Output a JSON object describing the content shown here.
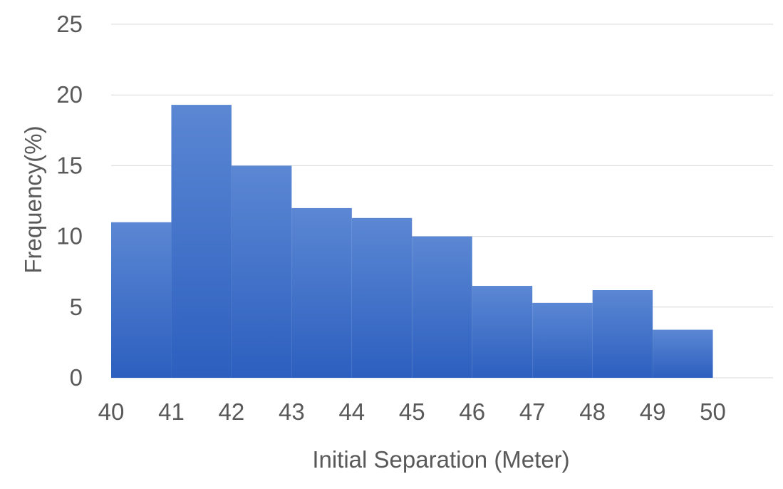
{
  "chart_data": {
    "type": "bar",
    "title": "",
    "xlabel": "Initial Separation (Meter)",
    "ylabel": "Frequency(%)",
    "bin_edges": [
      40,
      41,
      42,
      43,
      44,
      45,
      46,
      47,
      48,
      49,
      50
    ],
    "values": [
      11,
      19.3,
      15,
      12,
      11.3,
      10,
      6.5,
      5.3,
      6.2,
      3.4
    ],
    "x_tick_labels": [
      "40",
      "41",
      "42",
      "43",
      "44",
      "45",
      "46",
      "47",
      "48",
      "49",
      "50"
    ],
    "y_tick_labels": [
      "0",
      "5",
      "10",
      "15",
      "20",
      "25"
    ],
    "xlim": [
      40,
      51
    ],
    "ylim": [
      0,
      25
    ],
    "y_ticks": [
      0,
      5,
      10,
      15,
      20,
      25
    ],
    "grid": true,
    "legend": "none",
    "colors": {
      "bar_top": "#5b87d3",
      "bar_bottom": "#2c5fbf",
      "grid": "#d9d9d9",
      "text": "#595959"
    }
  }
}
